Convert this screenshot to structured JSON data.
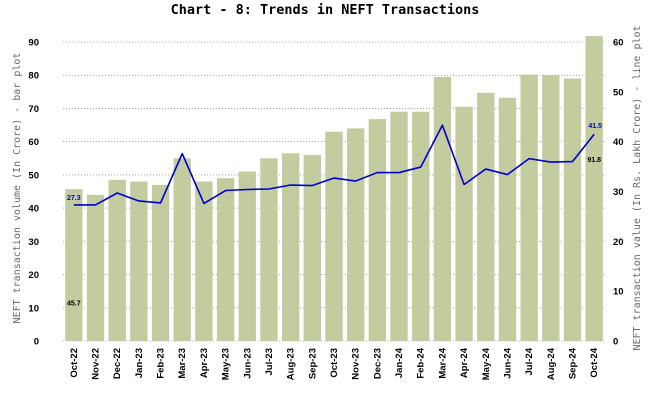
{
  "chart_data": {
    "type": "bar+line",
    "title": "Chart - 8: Trends in NEFT Transactions",
    "categories": [
      "Oct-22",
      "Nov-22",
      "Dec-22",
      "Jan-23",
      "Feb-23",
      "Mar-23",
      "Apr-23",
      "May-23",
      "Jun-23",
      "Jul-23",
      "Aug-23",
      "Sep-23",
      "Oct-23",
      "Nov-23",
      "Dec-23",
      "Jan-24",
      "Feb-24",
      "Mar-24",
      "Apr-24",
      "May-24",
      "Jun-24",
      "Jul-24",
      "Aug-24",
      "Sep-24",
      "Oct-24"
    ],
    "bar_series": {
      "axis": "left",
      "color": "#c3cc9f",
      "values": [
        45.7,
        44,
        48.5,
        48,
        47,
        55,
        48,
        49,
        51,
        55,
        56.5,
        56,
        63,
        64,
        66.8,
        69,
        69,
        79.5,
        70.5,
        74.7,
        73.2,
        80.2,
        80,
        79,
        91.8
      ]
    },
    "line_series": {
      "axis": "right",
      "color": "#0000cc",
      "values": [
        27.3,
        27.3,
        29.7,
        28.1,
        27.7,
        37.6,
        27.6,
        30.2,
        30.4,
        30.5,
        31.3,
        31.2,
        32.7,
        32.1,
        33.8,
        33.8,
        34.9,
        43.3,
        31.4,
        34.5,
        33.4,
        36.6,
        35.9,
        36.0,
        41.5
      ]
    },
    "data_labels": {
      "first_bar": "45.7",
      "last_bar": "91.8",
      "first_line": "27.3",
      "last_line": "41.5"
    },
    "ylabel_left": "NEFT transaction volume (In Crore) - bar plot",
    "ylabel_right": "NEFT transaction value (In Rs. Lakh Crore) - line plot",
    "ylim_left": [
      0,
      90
    ],
    "yticks_left": [
      0,
      10,
      20,
      30,
      40,
      50,
      60,
      70,
      80,
      90
    ],
    "ylim_right": [
      0,
      60
    ],
    "yticks_right": [
      0,
      10,
      20,
      30,
      40,
      50,
      60
    ],
    "grid": true,
    "legend": "none"
  }
}
